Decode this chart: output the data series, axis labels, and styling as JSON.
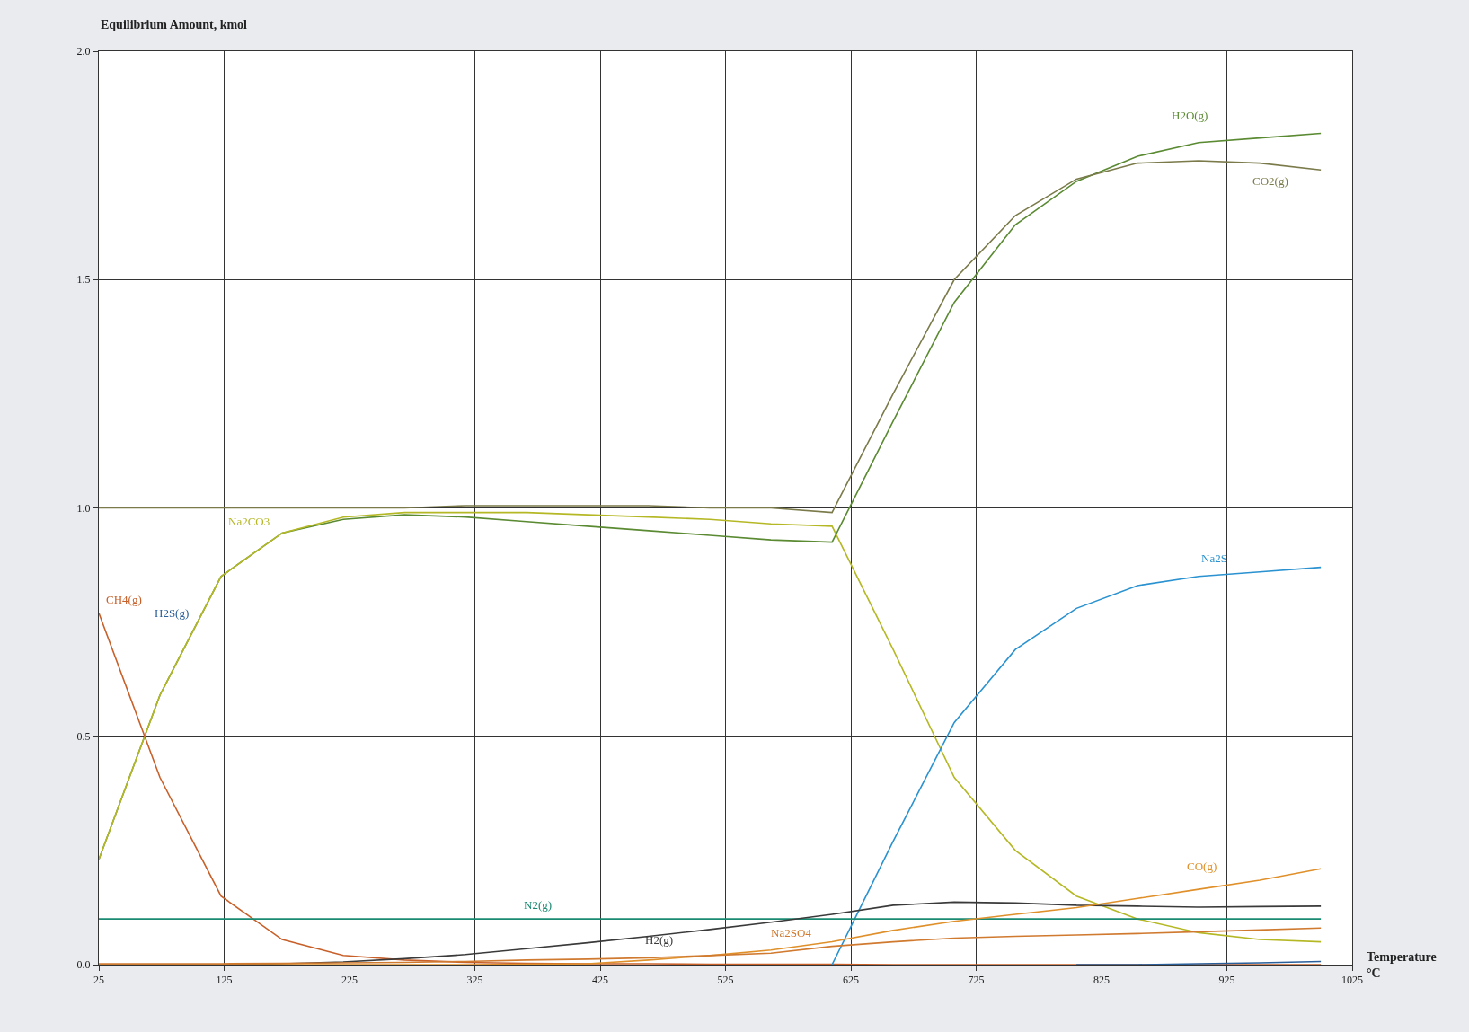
{
  "chart_data": {
    "type": "line",
    "ylabel": "Equilibrium Amount, kmol",
    "xlabel": "Temperature\n°C",
    "x": [
      25,
      73.75,
      122.5,
      171.25,
      220,
      268.75,
      317.5,
      366.25,
      415,
      463.75,
      512.5,
      561.25,
      610,
      658.75,
      707.5,
      756.25,
      805,
      853.75,
      902.5,
      951.25,
      1000
    ],
    "series": [
      {
        "name": "H2O(g)",
        "color": "#5a8a32",
        "values": [
          0.23,
          0.59,
          0.85,
          0.945,
          0.975,
          0.985,
          0.98,
          0.97,
          0.96,
          0.95,
          0.94,
          0.93,
          0.925,
          1.19,
          1.45,
          1.62,
          1.715,
          1.77,
          1.8,
          1.81,
          1.82
        ]
      },
      {
        "name": "CO2(g)",
        "color": "#7a7a4a",
        "values": [
          1.0,
          1.0,
          1.0,
          1.0,
          1.0,
          1.0,
          1.005,
          1.005,
          1.005,
          1.005,
          1.0,
          1.0,
          0.99,
          1.25,
          1.5,
          1.64,
          1.72,
          1.755,
          1.76,
          1.755,
          1.74
        ]
      },
      {
        "name": "Na2CO3",
        "color": "#b5b825",
        "values": [
          0.23,
          0.59,
          0.85,
          0.945,
          0.98,
          0.99,
          0.99,
          0.99,
          0.985,
          0.98,
          0.975,
          0.965,
          0.96,
          0.69,
          0.41,
          0.25,
          0.15,
          0.1,
          0.07,
          0.055,
          0.05
        ]
      },
      {
        "name": "CH4(g)",
        "color": "#c8602a",
        "values": [
          0.77,
          0.41,
          0.15,
          0.055,
          0.02,
          0.01,
          0.005,
          0.003,
          0.002,
          0.002,
          0.001,
          0.001,
          0.001,
          0.0,
          0.0,
          0.0,
          0.0,
          0.0,
          0.0,
          0.0,
          0.0
        ]
      },
      {
        "name": "H2S(g)",
        "color": "#2a5f9a",
        "values": [
          null,
          null,
          null,
          null,
          null,
          null,
          null,
          null,
          null,
          null,
          null,
          null,
          null,
          null,
          null,
          null,
          0.0,
          0.0,
          0.002,
          0.004,
          0.007
        ]
      },
      {
        "name": "Na2S",
        "color": "#2a92d0",
        "values": [
          null,
          null,
          null,
          null,
          null,
          null,
          null,
          null,
          null,
          null,
          null,
          null,
          0.0,
          0.27,
          0.53,
          0.69,
          0.78,
          0.83,
          0.85,
          0.86,
          0.87
        ]
      },
      {
        "name": "N2(g)",
        "color": "#1a8a72",
        "values": [
          0.1,
          0.1,
          0.1,
          0.1,
          0.1,
          0.1,
          0.1,
          0.1,
          0.1,
          0.1,
          0.1,
          0.1,
          0.1,
          0.1,
          0.1,
          0.1,
          0.1,
          0.1,
          0.1,
          0.1,
          0.1
        ]
      },
      {
        "name": "H2(g)",
        "color": "#3a3a3a",
        "values": [
          0.0,
          0.0,
          0.0,
          0.002,
          0.006,
          0.013,
          0.022,
          0.035,
          0.048,
          0.062,
          0.077,
          0.093,
          0.11,
          0.13,
          0.137,
          0.135,
          0.13,
          0.128,
          0.126,
          0.127,
          0.128
        ]
      },
      {
        "name": "CO(g)",
        "color": "#e0902a",
        "values": [
          0.0,
          0.0,
          0.0,
          0.0,
          0.0,
          0.0,
          0.0,
          0.001,
          0.002,
          0.01,
          0.02,
          0.032,
          0.05,
          0.075,
          0.095,
          0.11,
          0.125,
          0.145,
          0.165,
          0.185,
          0.21
        ]
      },
      {
        "name": "Na2SO4",
        "color": "#d07a30",
        "values": [
          0.002,
          0.002,
          0.002,
          0.003,
          0.004,
          0.005,
          0.007,
          0.01,
          0.012,
          0.015,
          0.02,
          0.025,
          0.04,
          0.05,
          0.058,
          0.062,
          0.065,
          0.068,
          0.072,
          0.076,
          0.08
        ]
      }
    ],
    "xlim": [
      25,
      1025
    ],
    "xticks": [
      25,
      125,
      225,
      325,
      425,
      525,
      625,
      725,
      825,
      925,
      1025
    ],
    "ylim": [
      0,
      2
    ],
    "yticks": [
      {
        "value": 0,
        "label": "0.0"
      },
      {
        "value": 0.5,
        "label": "0.5"
      },
      {
        "value": 1,
        "label": "1.0"
      },
      {
        "value": 1.5,
        "label": "1.5"
      },
      {
        "value": 2,
        "label": "2.0"
      }
    ],
    "grid": true,
    "legend": false,
    "marker": "none",
    "line_style": "solid"
  }
}
